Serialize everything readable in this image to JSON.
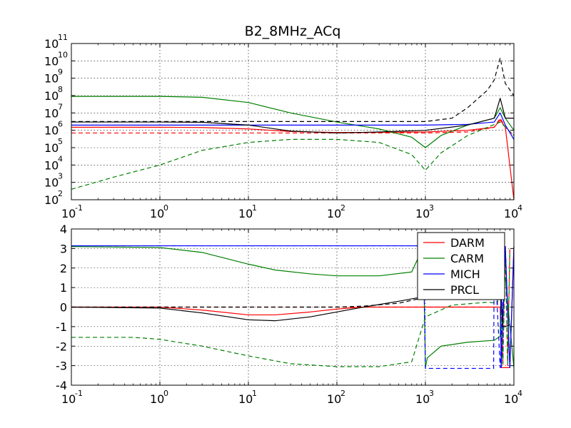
{
  "chart_data": [
    {
      "type": "line",
      "title": "B2_8MHz_ACq",
      "xscale": "log",
      "yscale": "log",
      "xlim": [
        0.1,
        10000
      ],
      "ylim": [
        100,
        100000000000
      ],
      "xticks": [
        {
          "base": "10",
          "exp": "-1"
        },
        {
          "base": "10",
          "exp": "0"
        },
        {
          "base": "10",
          "exp": "1"
        },
        {
          "base": "10",
          "exp": "2"
        },
        {
          "base": "10",
          "exp": "3"
        },
        {
          "base": "10",
          "exp": "4"
        }
      ],
      "yticks": [
        {
          "base": "10",
          "exp": "2"
        },
        {
          "base": "10",
          "exp": "3"
        },
        {
          "base": "10",
          "exp": "4"
        },
        {
          "base": "10",
          "exp": "5"
        },
        {
          "base": "10",
          "exp": "6"
        },
        {
          "base": "10",
          "exp": "7"
        },
        {
          "base": "10",
          "exp": "8"
        },
        {
          "base": "10",
          "exp": "9"
        },
        {
          "base": "10",
          "exp": "10"
        },
        {
          "base": "10",
          "exp": "11"
        }
      ],
      "grid": true,
      "series": [
        {
          "name": "DARM",
          "color": "#ff0000",
          "style": "solid",
          "x": [
            0.1,
            1,
            3,
            10,
            30,
            100,
            300,
            1000,
            3000,
            6000,
            7000,
            8000,
            10000
          ],
          "y": [
            1500000,
            1500000,
            1450000,
            1200000,
            850000,
            750000,
            760000,
            800000,
            1000000,
            1500000,
            4000000,
            1500000,
            100
          ]
        },
        {
          "name": "DARM",
          "color": "#ff0000",
          "style": "dashed",
          "x": [
            0.1,
            1,
            10,
            100,
            1000,
            3000,
            6000,
            7000,
            8000,
            10000
          ],
          "y": [
            700000,
            700000,
            700000,
            700000,
            700000,
            800000,
            1500000,
            5000000,
            1500000,
            500000
          ]
        },
        {
          "name": "CARM",
          "color": "#008000",
          "style": "solid",
          "x": [
            0.1,
            1,
            3,
            10,
            30,
            100,
            300,
            700,
            1000,
            1500,
            3000,
            6000,
            7000,
            8000,
            10000
          ],
          "y": [
            90000000,
            90000000,
            80000000,
            40000000,
            10000000,
            3000000,
            1200000,
            400000,
            100000,
            500000,
            2000000,
            5000000,
            20000000,
            5000000,
            1000000
          ]
        },
        {
          "name": "CARM",
          "color": "#008000",
          "style": "dashed",
          "x": [
            0.1,
            0.3,
            1,
            3,
            10,
            30,
            100,
            300,
            700,
            1000,
            1500,
            3000,
            7000,
            10000
          ],
          "y": [
            400,
            2000,
            10000,
            70000,
            200000,
            300000,
            300000,
            200000,
            40000,
            5000,
            50000,
            500000,
            3000000,
            500000
          ]
        },
        {
          "name": "MICH",
          "color": "#0000ff",
          "style": "solid",
          "x": [
            0.1,
            10,
            100,
            1000,
            3000,
            6000,
            7000,
            8000,
            10000
          ],
          "y": [
            2000000,
            2000000,
            2000000,
            2000000,
            2200000,
            3000000,
            10000000,
            2000000,
            300000
          ]
        },
        {
          "name": "PRCL",
          "color": "#000000",
          "style": "solid",
          "x": [
            0.1,
            1,
            3,
            10,
            30,
            100,
            300,
            1000,
            3000,
            6000,
            7000,
            8000,
            10000
          ],
          "y": [
            3000000,
            3000000,
            2900000,
            2000000,
            900000,
            700000,
            800000,
            1000000,
            2000000,
            5000000,
            70000000,
            5000000,
            5000000
          ]
        },
        {
          "name": "PRCL",
          "color": "#000000",
          "style": "dashed",
          "x": [
            0.1,
            1,
            10,
            100,
            1000,
            2000,
            3000,
            5000,
            6000,
            7000,
            8000,
            10000
          ],
          "y": [
            3200000,
            3200000,
            3200000,
            3200000,
            3200000,
            5000000,
            20000000,
            200000000,
            800000000,
            15000000000,
            500000000,
            100000000
          ]
        }
      ]
    },
    {
      "type": "line",
      "xscale": "log",
      "yscale": "linear",
      "xlim": [
        0.1,
        10000
      ],
      "ylim": [
        -4,
        4
      ],
      "xticks": [
        {
          "base": "10",
          "exp": "-1"
        },
        {
          "base": "10",
          "exp": "0"
        },
        {
          "base": "10",
          "exp": "1"
        },
        {
          "base": "10",
          "exp": "2"
        },
        {
          "base": "10",
          "exp": "3"
        },
        {
          "base": "10",
          "exp": "4"
        }
      ],
      "yticks": [
        "-4",
        "-3",
        "-2",
        "-1",
        "0",
        "1",
        "2",
        "3",
        "4"
      ],
      "grid": true,
      "legend": {
        "position": "top-right",
        "entries": [
          "DARM",
          "CARM",
          "MICH",
          "PRCL"
        ]
      },
      "series": [
        {
          "name": "DARM",
          "color": "#ff0000",
          "style": "solid",
          "x": [
            0.1,
            1,
            3,
            10,
            20,
            50,
            100,
            200,
            1000,
            3000,
            6000,
            7000,
            7200,
            8000,
            9000,
            10000
          ],
          "y": [
            0,
            0,
            -0.15,
            -0.4,
            -0.4,
            -0.25,
            -0.1,
            0,
            0,
            0,
            0,
            0,
            -3.1,
            -3.1,
            -3.1,
            3.1
          ]
        },
        {
          "name": "DARM",
          "color": "#ff0000",
          "style": "dashed",
          "x": [
            0.1,
            1000,
            6500,
            7000,
            7500,
            8000,
            8500,
            9000
          ],
          "y": [
            0,
            0,
            0,
            3.1,
            -3.0,
            3.1,
            -3.0,
            3.1
          ]
        },
        {
          "name": "CARM",
          "color": "#008000",
          "style": "solid",
          "x": [
            0.1,
            1,
            3,
            10,
            20,
            50,
            100,
            300,
            700,
            950,
            1000,
            1050,
            1500,
            3000,
            6000,
            7000,
            7200,
            8000,
            10000
          ],
          "y": [
            3.1,
            3.05,
            2.8,
            2.2,
            1.9,
            1.7,
            1.6,
            1.6,
            1.8,
            3.1,
            -3.1,
            -2.6,
            -2.0,
            -1.8,
            -1.7,
            -1.5,
            1.5,
            1.5,
            -3.1
          ]
        },
        {
          "name": "CARM",
          "color": "#008000",
          "style": "dashed",
          "x": [
            0.1,
            0.5,
            1,
            3,
            10,
            30,
            100,
            300,
            700,
            1000,
            2000,
            5000,
            6500,
            7000,
            7500,
            8000,
            8500,
            9000
          ],
          "y": [
            -1.55,
            -1.55,
            -1.65,
            -2.0,
            -2.5,
            -2.9,
            -3.05,
            -3.05,
            -2.8,
            -0.5,
            0.1,
            0.25,
            0.2,
            2.9,
            -2.9,
            2.9,
            -2.9,
            2.9
          ]
        },
        {
          "name": "MICH",
          "color": "#0000ff",
          "style": "solid",
          "x": [
            0.1,
            1,
            10,
            100,
            1000,
            5000,
            7000,
            7200,
            8000,
            9000,
            10000
          ],
          "y": [
            3.14,
            3.14,
            3.14,
            3.14,
            3.14,
            3.14,
            3.14,
            -3.1,
            3.1,
            -3.1,
            3.1
          ]
        },
        {
          "name": "MICH",
          "color": "#0000ff",
          "style": "dashed",
          "x": [
            0.1,
            1,
            10,
            100,
            950,
            1000,
            3000,
            5900,
            6000,
            7000,
            8000,
            9000
          ],
          "y": [
            3.14,
            3.14,
            3.14,
            3.14,
            3.14,
            -3.14,
            -3.14,
            -3.14,
            3.14,
            -3.1,
            3.1,
            -3.1
          ]
        },
        {
          "name": "PRCL",
          "color": "#000000",
          "style": "solid",
          "x": [
            0.1,
            1,
            3,
            10,
            20,
            50,
            100,
            200,
            500,
            1000,
            2000,
            5000,
            7000,
            7500,
            8000,
            9000
          ],
          "y": [
            0,
            -0.05,
            -0.3,
            -0.65,
            -0.7,
            -0.5,
            -0.25,
            0,
            0.3,
            0.55,
            0.95,
            1.8,
            1.5,
            -1.0,
            -1.0,
            -0.9
          ]
        },
        {
          "name": "PRCL",
          "color": "#000000",
          "style": "dashed",
          "x": [
            0.1,
            1,
            10,
            100,
            200,
            500,
            1000,
            2000,
            5000,
            7000,
            7500,
            8000
          ],
          "y": [
            0,
            0,
            0,
            0,
            0.05,
            0.2,
            0.5,
            1.0,
            1.7,
            1.5,
            -1.0,
            -0.95
          ]
        }
      ]
    }
  ]
}
